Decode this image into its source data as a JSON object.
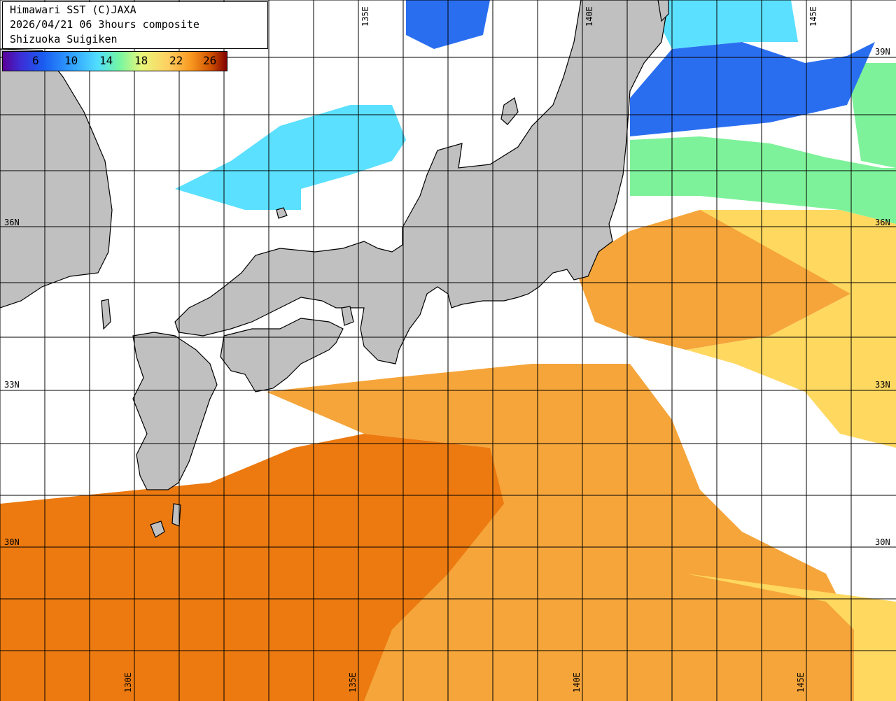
{
  "title": {
    "line1": "Himawari SST (C)JAXA",
    "line2": "2026/04/21 06 3hours composite",
    "line3": "Shizuoka Suigiken"
  },
  "colorbar": {
    "ticks": [
      "6",
      "10",
      "14",
      "18",
      "22",
      "26"
    ],
    "unit_hint": "sea surface temperature"
  },
  "lat_labels": {
    "n39": "39N",
    "n36": "36N",
    "n33": "33N",
    "n30": "30N"
  },
  "lon_labels": {
    "e130": "130E",
    "e135": "135E",
    "e140": "140E",
    "e145": "145E"
  },
  "colors": {
    "land": "#c0c0c0",
    "cloud": "#ffffff",
    "grid": "#000000",
    "sst_cold": "#2a6ef0",
    "sst_cool": "#5be0ff",
    "sst_mid": "#7ef29a",
    "sst_warm": "#ffd860",
    "sst_hot": "#f5a53a",
    "sst_hotter": "#ec7a10"
  }
}
